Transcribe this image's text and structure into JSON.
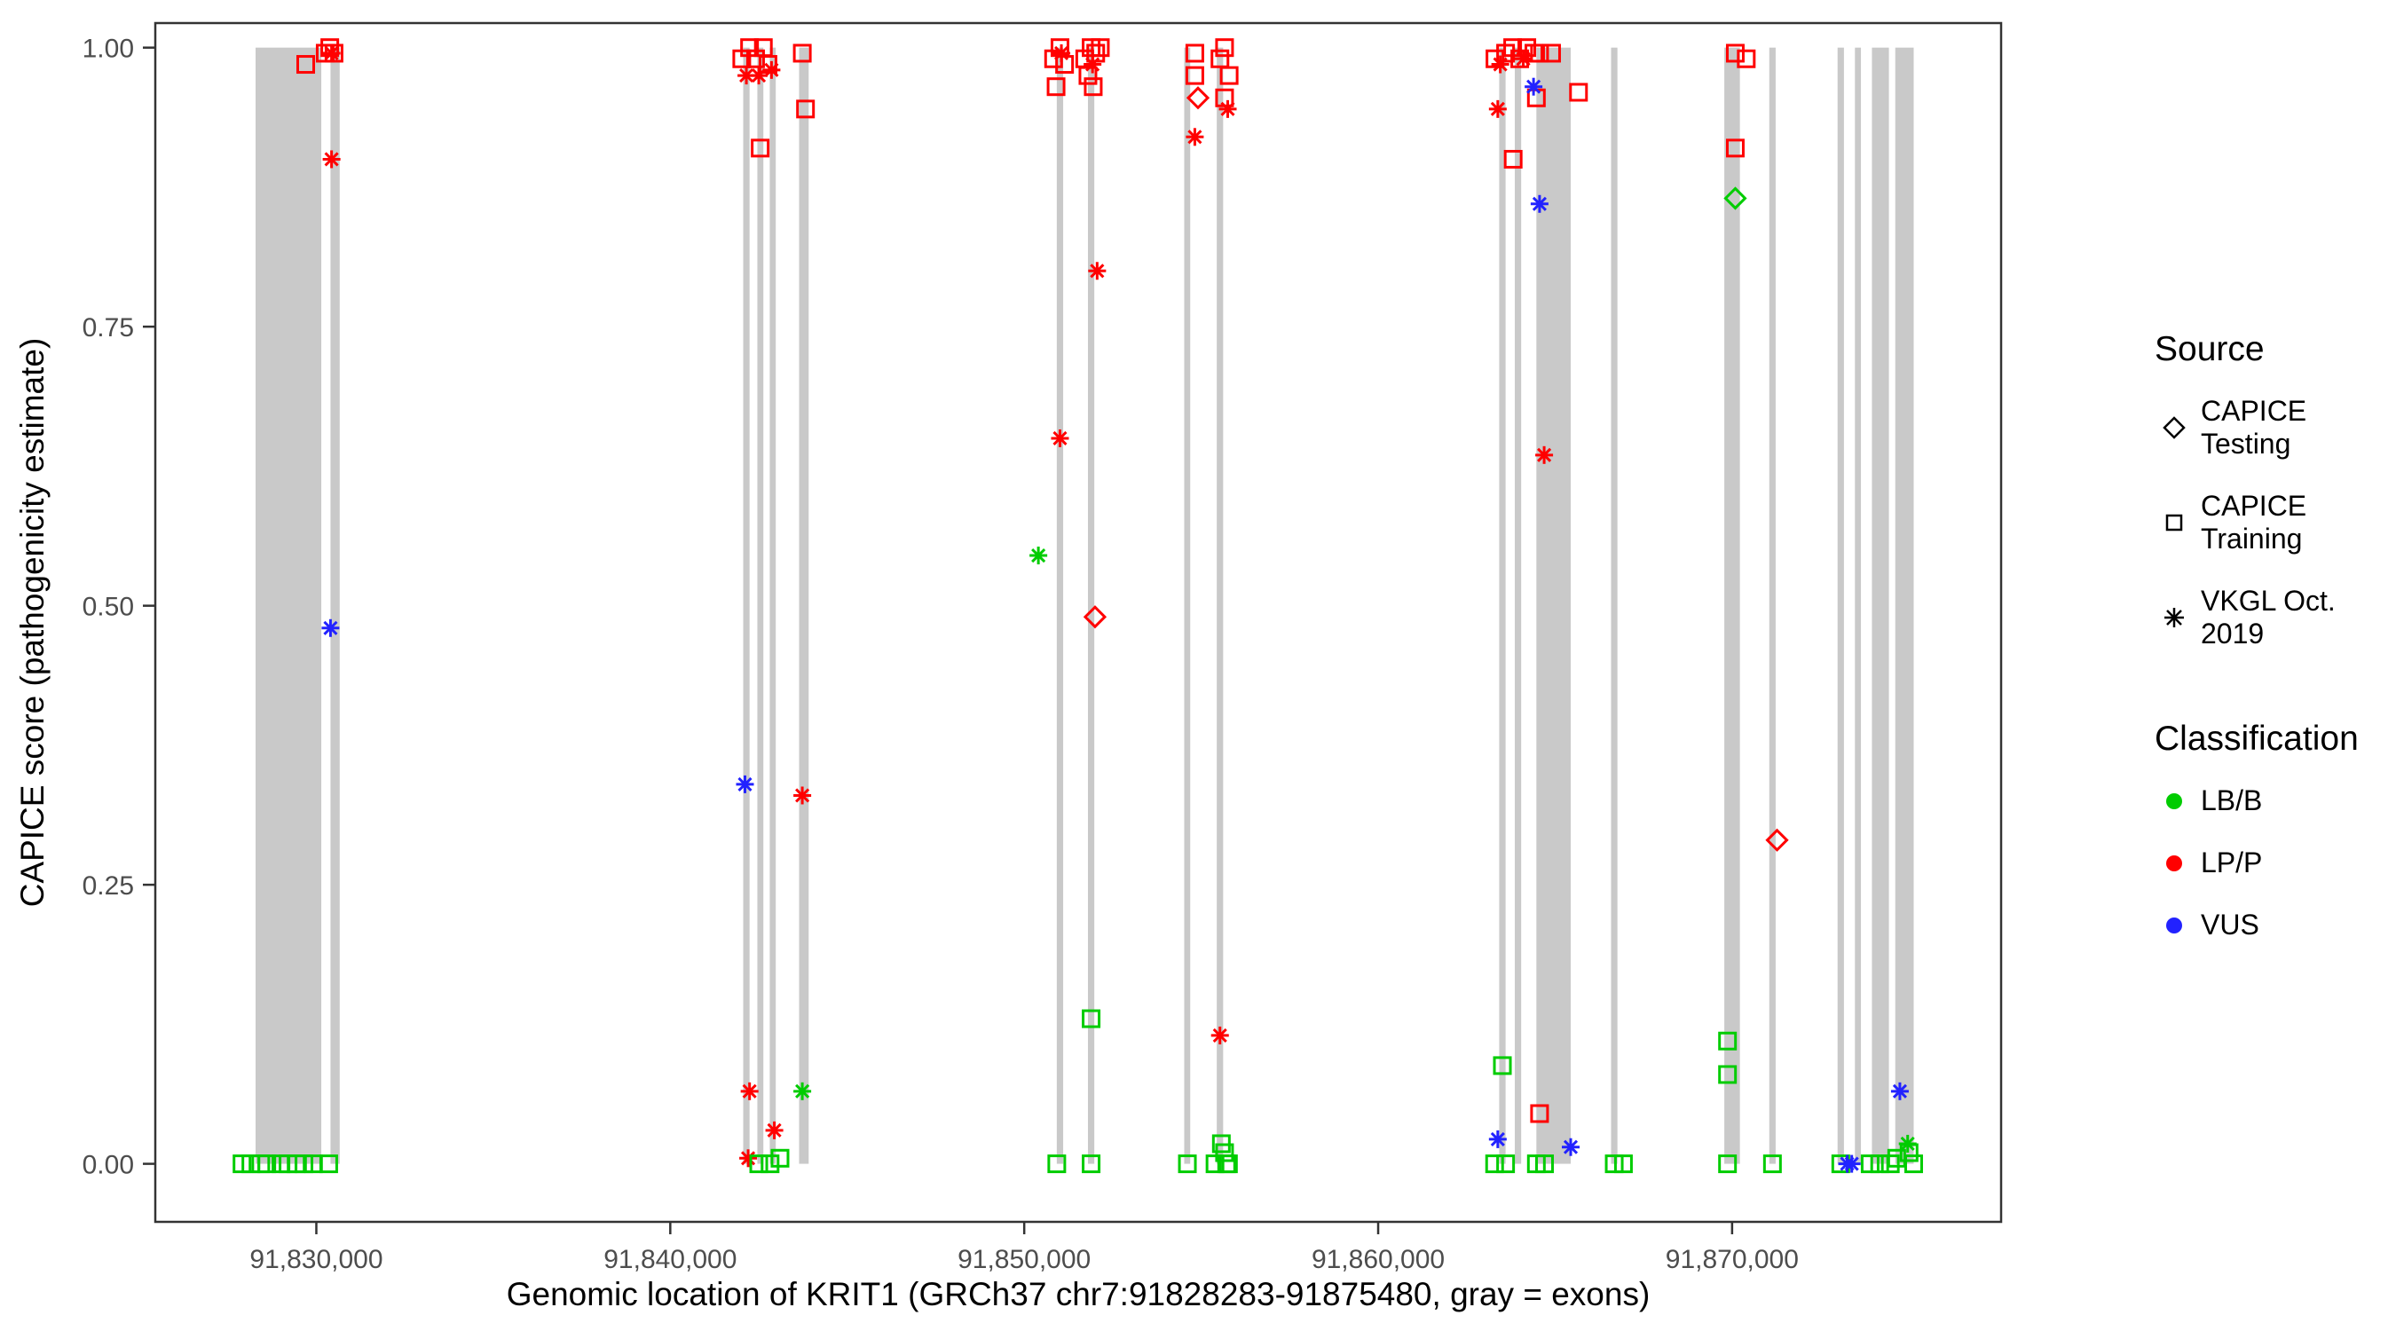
{
  "figure": {
    "xlabel": "Genomic location of KRIT1 (GRCh37 chr7:91828283-91875480, gray = exons)",
    "ylabel": "CAPICE score (pathogenicity estimate)"
  },
  "legend": {
    "source_title": "Source",
    "source_items": [
      {
        "label": "CAPICE Testing",
        "shape": "diamond"
      },
      {
        "label": "CAPICE Training",
        "shape": "square"
      },
      {
        "label": "VKGL Oct. 2019",
        "shape": "asterisk"
      }
    ],
    "classification_title": "Classification",
    "classification_items": [
      {
        "label": "LB/B",
        "color": "#00cc00"
      },
      {
        "label": "LP/P",
        "color": "#ff0000"
      },
      {
        "label": "VUS",
        "color": "#2222ff"
      }
    ]
  },
  "chart_data": {
    "type": "scatter",
    "title": "",
    "xlabel": "Genomic location of KRIT1 (GRCh37 chr7:91828283-91875480, gray = exons)",
    "ylabel": "CAPICE score (pathogenicity estimate)",
    "xlim": [
      91825450,
      91877600
    ],
    "ylim": [
      -0.052,
      1.022
    ],
    "grid": false,
    "legend_position": "right",
    "x_ticks": [
      {
        "value": 91830000,
        "label": "91,830,000"
      },
      {
        "value": 91840000,
        "label": "91,840,000"
      },
      {
        "value": 91850000,
        "label": "91,850,000"
      },
      {
        "value": 91860000,
        "label": "91,860,000"
      },
      {
        "value": 91870000,
        "label": "91,870,000"
      }
    ],
    "y_ticks": [
      {
        "value": 0,
        "label": "0.00"
      },
      {
        "value": 0.25,
        "label": "0.25"
      },
      {
        "value": 0.5,
        "label": "0.50"
      },
      {
        "value": 0.75,
        "label": "0.75"
      },
      {
        "value": 1,
        "label": "1.00"
      }
    ],
    "exon_color": "#c9c9c9",
    "class_colors": {
      "LB/B": "#00cc00",
      "LP/P": "#ff0000",
      "VUS": "#2222ff"
    },
    "marker_shapes": {
      "CAPICE Testing": "diamond",
      "CAPICE Training": "square",
      "VKGL Oct. 2019": "asterisk"
    },
    "exons": [
      [
        91828283,
        91830140
      ],
      [
        91830400,
        91830660
      ],
      [
        91842060,
        91842240
      ],
      [
        91842460,
        91842630
      ],
      [
        91842810,
        91842980
      ],
      [
        91843640,
        91843910
      ],
      [
        91850920,
        91851100
      ],
      [
        91851800,
        91851980
      ],
      [
        91854520,
        91854690
      ],
      [
        91855440,
        91855620
      ],
      [
        91863420,
        91863600
      ],
      [
        91863860,
        91864040
      ],
      [
        91864470,
        91865440
      ],
      [
        91866580,
        91866760
      ],
      [
        91869780,
        91870220
      ],
      [
        91871050,
        91871230
      ],
      [
        91872980,
        91873160
      ],
      [
        91873470,
        91873640
      ],
      [
        91873950,
        91874430
      ],
      [
        91874610,
        91875130
      ]
    ],
    "points_columns": [
      "genomic_position",
      "capice_score",
      "source",
      "classification"
    ],
    "points": [
      [
        91827900,
        0,
        "CAPICE Training",
        "LB/B"
      ],
      [
        91828150,
        0,
        "CAPICE Training",
        "LB/B"
      ],
      [
        91828430,
        0,
        "CAPICE Training",
        "LB/B"
      ],
      [
        91828600,
        0,
        "CAPICE Training",
        "LB/B"
      ],
      [
        91829000,
        0,
        "CAPICE Training",
        "LB/B"
      ],
      [
        91829200,
        0,
        "CAPICE Training",
        "LB/B"
      ],
      [
        91829430,
        0,
        "CAPICE Training",
        "LB/B"
      ],
      [
        91829650,
        0,
        "CAPICE Training",
        "LB/B"
      ],
      [
        91829920,
        0,
        "CAPICE Training",
        "LB/B"
      ],
      [
        91830350,
        0,
        "CAPICE Training",
        "LB/B"
      ],
      [
        91829700,
        0.985,
        "CAPICE Training",
        "LP/P"
      ],
      [
        91830250,
        0.995,
        "CAPICE Training",
        "LP/P"
      ],
      [
        91830380,
        1.0,
        "CAPICE Training",
        "LP/P"
      ],
      [
        91830500,
        0.995,
        "CAPICE Training",
        "LP/P"
      ],
      [
        91830430,
        0.995,
        "VKGL Oct. 2019",
        "LP/P"
      ],
      [
        91830430,
        0.9,
        "VKGL Oct. 2019",
        "LP/P"
      ],
      [
        91830400,
        0.48,
        "VKGL Oct. 2019",
        "VUS"
      ],
      [
        91842020,
        0.99,
        "CAPICE Training",
        "LP/P"
      ],
      [
        91842240,
        1.0,
        "CAPICE Training",
        "LP/P"
      ],
      [
        91842410,
        0.99,
        "CAPICE Training",
        "LP/P"
      ],
      [
        91842630,
        1.0,
        "CAPICE Training",
        "LP/P"
      ],
      [
        91842760,
        0.985,
        "CAPICE Training",
        "LP/P"
      ],
      [
        91842540,
        0.91,
        "CAPICE Training",
        "LP/P"
      ],
      [
        91843730,
        0.995,
        "CAPICE Training",
        "LP/P"
      ],
      [
        91843820,
        0.945,
        "CAPICE Training",
        "LP/P"
      ],
      [
        91842150,
        0.975,
        "VKGL Oct. 2019",
        "LP/P"
      ],
      [
        91842500,
        0.975,
        "VKGL Oct. 2019",
        "LP/P"
      ],
      [
        91842860,
        0.98,
        "VKGL Oct. 2019",
        "LP/P"
      ],
      [
        91843730,
        0.33,
        "VKGL Oct. 2019",
        "LP/P"
      ],
      [
        91842240,
        0.065,
        "VKGL Oct. 2019",
        "LP/P"
      ],
      [
        91842940,
        0.03,
        "VKGL Oct. 2019",
        "LP/P"
      ],
      [
        91842200,
        0.005,
        "VKGL Oct. 2019",
        "LP/P"
      ],
      [
        91842110,
        0.34,
        "VKGL Oct. 2019",
        "VUS"
      ],
      [
        91843730,
        0.065,
        "VKGL Oct. 2019",
        "LB/B"
      ],
      [
        91842500,
        0,
        "CAPICE Training",
        "LB/B"
      ],
      [
        91842820,
        0,
        "CAPICE Training",
        "LB/B"
      ],
      [
        91843100,
        0.005,
        "CAPICE Training",
        "LB/B"
      ],
      [
        91850830,
        0.99,
        "CAPICE Training",
        "LP/P"
      ],
      [
        91851010,
        1.0,
        "CAPICE Training",
        "LP/P"
      ],
      [
        91851140,
        0.985,
        "CAPICE Training",
        "LP/P"
      ],
      [
        91850900,
        0.965,
        "CAPICE Training",
        "LP/P"
      ],
      [
        91851710,
        0.99,
        "CAPICE Training",
        "LP/P"
      ],
      [
        91851890,
        1.0,
        "CAPICE Training",
        "LP/P"
      ],
      [
        91852020,
        0.995,
        "CAPICE Training",
        "LP/P"
      ],
      [
        91852150,
        1.0,
        "CAPICE Training",
        "LP/P"
      ],
      [
        91851800,
        0.975,
        "CAPICE Training",
        "LP/P"
      ],
      [
        91851950,
        0.965,
        "CAPICE Training",
        "LP/P"
      ],
      [
        91851050,
        0.995,
        "VKGL Oct. 2019",
        "LP/P"
      ],
      [
        91851930,
        0.985,
        "VKGL Oct. 2019",
        "LP/P"
      ],
      [
        91852060,
        0.8,
        "VKGL Oct. 2019",
        "LP/P"
      ],
      [
        91851010,
        0.65,
        "VKGL Oct. 2019",
        "LP/P"
      ],
      [
        91850400,
        0.545,
        "VKGL Oct. 2019",
        "LB/B"
      ],
      [
        91852000,
        0.49,
        "CAPICE Testing",
        "LP/P"
      ],
      [
        91851890,
        0.13,
        "CAPICE Training",
        "LB/B"
      ],
      [
        91850920,
        0,
        "CAPICE Training",
        "LB/B"
      ],
      [
        91851890,
        0,
        "CAPICE Training",
        "LB/B"
      ],
      [
        91854820,
        0.995,
        "CAPICE Training",
        "LP/P"
      ],
      [
        91854820,
        0.975,
        "CAPICE Training",
        "LP/P"
      ],
      [
        91855530,
        0.99,
        "CAPICE Training",
        "LP/P"
      ],
      [
        91855660,
        1.0,
        "CAPICE Training",
        "LP/P"
      ],
      [
        91855790,
        0.975,
        "CAPICE Training",
        "LP/P"
      ],
      [
        91855660,
        0.955,
        "CAPICE Training",
        "LP/P"
      ],
      [
        91854910,
        0.955,
        "CAPICE Testing",
        "LP/P"
      ],
      [
        91855750,
        0.945,
        "VKGL Oct. 2019",
        "LP/P"
      ],
      [
        91854820,
        0.92,
        "VKGL Oct. 2019",
        "LP/P"
      ],
      [
        91855530,
        0.115,
        "VKGL Oct. 2019",
        "LP/P"
      ],
      [
        91854610,
        0,
        "CAPICE Training",
        "LB/B"
      ],
      [
        91855390,
        0,
        "CAPICE Training",
        "LB/B"
      ],
      [
        91855570,
        0.018,
        "CAPICE Training",
        "LB/B"
      ],
      [
        91855660,
        0.01,
        "CAPICE Training",
        "LB/B"
      ],
      [
        91855720,
        0,
        "CAPICE Training",
        "LB/B"
      ],
      [
        91855770,
        0,
        "CAPICE Training",
        "LB/B"
      ],
      [
        91863300,
        0.99,
        "CAPICE Training",
        "LP/P"
      ],
      [
        91863600,
        0.995,
        "CAPICE Training",
        "LP/P"
      ],
      [
        91863800,
        1.0,
        "CAPICE Training",
        "LP/P"
      ],
      [
        91864000,
        0.99,
        "CAPICE Training",
        "LP/P"
      ],
      [
        91864200,
        1.0,
        "CAPICE Training",
        "LP/P"
      ],
      [
        91864400,
        0.995,
        "CAPICE Training",
        "LP/P"
      ],
      [
        91864560,
        0.995,
        "CAPICE Training",
        "LP/P"
      ],
      [
        91864900,
        0.995,
        "CAPICE Training",
        "LP/P"
      ],
      [
        91863815,
        0.9,
        "CAPICE Training",
        "LP/P"
      ],
      [
        91864470,
        0.955,
        "CAPICE Training",
        "LP/P"
      ],
      [
        91865660,
        0.96,
        "CAPICE Training",
        "LP/P"
      ],
      [
        91864560,
        0.045,
        "CAPICE Training",
        "LP/P"
      ],
      [
        91863450,
        0.985,
        "VKGL Oct. 2019",
        "LP/P"
      ],
      [
        91864100,
        0.99,
        "VKGL Oct. 2019",
        "LP/P"
      ],
      [
        91863380,
        0.945,
        "VKGL Oct. 2019",
        "LP/P"
      ],
      [
        91864690,
        0.635,
        "VKGL Oct. 2019",
        "LP/P"
      ],
      [
        91864390,
        0.965,
        "VKGL Oct. 2019",
        "VUS"
      ],
      [
        91864560,
        0.86,
        "VKGL Oct. 2019",
        "VUS"
      ],
      [
        91863380,
        0.022,
        "VKGL Oct. 2019",
        "VUS"
      ],
      [
        91865440,
        0.015,
        "VKGL Oct. 2019",
        "VUS"
      ],
      [
        91863510,
        0.088,
        "CAPICE Training",
        "LB/B"
      ],
      [
        91863290,
        0,
        "CAPICE Training",
        "LB/B"
      ],
      [
        91863600,
        0,
        "CAPICE Training",
        "LB/B"
      ],
      [
        91864470,
        0,
        "CAPICE Training",
        "LB/B"
      ],
      [
        91864700,
        0,
        "CAPICE Training",
        "LB/B"
      ],
      [
        91866670,
        0,
        "CAPICE Training",
        "LB/B"
      ],
      [
        91866930,
        0,
        "CAPICE Training",
        "LB/B"
      ],
      [
        91870090,
        0.995,
        "CAPICE Training",
        "LP/P"
      ],
      [
        91870400,
        0.99,
        "CAPICE Training",
        "LP/P"
      ],
      [
        91870090,
        0.91,
        "CAPICE Training",
        "LP/P"
      ],
      [
        91870090,
        0.865,
        "CAPICE Testing",
        "LB/B"
      ],
      [
        91869870,
        0.11,
        "CAPICE Training",
        "LB/B"
      ],
      [
        91869870,
        0.08,
        "CAPICE Training",
        "LB/B"
      ],
      [
        91869870,
        0,
        "CAPICE Training",
        "LB/B"
      ],
      [
        91871140,
        0,
        "CAPICE Training",
        "LB/B"
      ],
      [
        91871270,
        0.29,
        "CAPICE Testing",
        "LP/P"
      ],
      [
        91873070,
        0,
        "CAPICE Training",
        "LB/B"
      ],
      [
        91873250,
        0,
        "VKGL Oct. 2019",
        "VUS"
      ],
      [
        91873380,
        0,
        "VKGL Oct. 2019",
        "VUS"
      ],
      [
        91873900,
        0,
        "CAPICE Training",
        "LB/B"
      ],
      [
        91874170,
        0,
        "CAPICE Training",
        "LB/B"
      ],
      [
        91874470,
        0,
        "CAPICE Training",
        "LB/B"
      ],
      [
        91874650,
        0.005,
        "CAPICE Training",
        "LB/B"
      ],
      [
        91874740,
        0.065,
        "VKGL Oct. 2019",
        "VUS"
      ],
      [
        91874960,
        0.018,
        "VKGL Oct. 2019",
        "LB/B"
      ],
      [
        91875000,
        0.01,
        "CAPICE Training",
        "LB/B"
      ],
      [
        91875130,
        0,
        "CAPICE Training",
        "LB/B"
      ]
    ]
  }
}
